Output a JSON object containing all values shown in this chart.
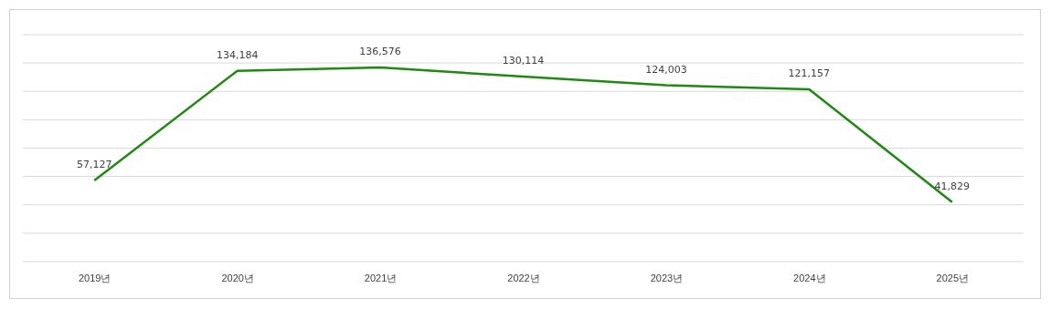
{
  "chart_data": {
    "type": "line",
    "categories": [
      "2019년",
      "2020년",
      "2021년",
      "2022년",
      "2023년",
      "2024년",
      "2025년"
    ],
    "series": [
      {
        "color": "#1e8a12",
        "values": [
          57127,
          134184,
          136576,
          130114,
          124003,
          121157,
          41829
        ],
        "value_labels": [
          "57,127",
          "134,184",
          "136,576",
          "130,114",
          "124,003",
          "121,157",
          "41,829"
        ]
      }
    ],
    "tick_labels": "x",
    "grid": "y",
    "marker": "none",
    "line_style": "solid"
  }
}
